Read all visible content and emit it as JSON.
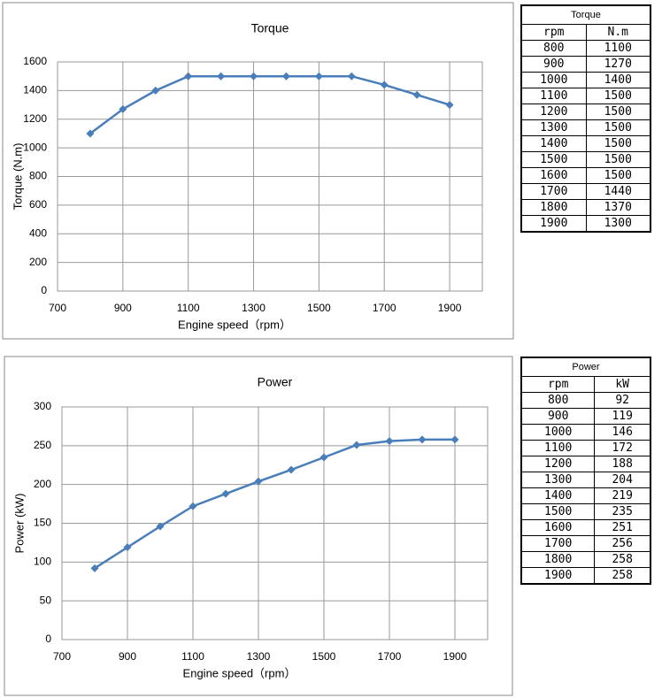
{
  "chart_data": [
    {
      "type": "line",
      "title": "Torque",
      "x_label": "Engine speed（rpm）",
      "y_label": "Torque (N.m)",
      "x": [
        800,
        900,
        1000,
        1100,
        1200,
        1300,
        1400,
        1500,
        1600,
        1700,
        1800,
        1900
      ],
      "series": [
        {
          "name": "Torque",
          "color": "#4a7ebb",
          "values": [
            1100,
            1270,
            1400,
            1500,
            1500,
            1500,
            1500,
            1500,
            1500,
            1440,
            1370,
            1300
          ]
        }
      ],
      "xlim": [
        700,
        2000
      ],
      "xticks": [
        700,
        900,
        1100,
        1300,
        1500,
        1700,
        1900
      ],
      "ylim": [
        0,
        1600
      ],
      "yticks": [
        0,
        200,
        400,
        600,
        800,
        1000,
        1200,
        1400,
        1600
      ],
      "grid": true
    },
    {
      "type": "line",
      "title": "Power",
      "x_label": "Engine speed（rpm）",
      "y_label": "Power (kW)",
      "x": [
        800,
        900,
        1000,
        1100,
        1200,
        1300,
        1400,
        1500,
        1600,
        1700,
        1800,
        1900
      ],
      "series": [
        {
          "name": "Power",
          "color": "#4a7ebb",
          "values": [
            92,
            119,
            146,
            172,
            188,
            204,
            219,
            235,
            251,
            256,
            258,
            258
          ]
        }
      ],
      "xlim": [
        700,
        2000
      ],
      "xticks": [
        700,
        900,
        1100,
        1300,
        1500,
        1700,
        1900
      ],
      "ylim": [
        0,
        300
      ],
      "yticks": [
        0,
        50,
        100,
        150,
        200,
        250,
        300
      ],
      "grid": true
    }
  ],
  "tables": [
    {
      "title": "Torque",
      "header": [
        "rpm",
        "N.m"
      ],
      "rows": [
        [
          "800",
          "1100"
        ],
        [
          "900",
          "1270"
        ],
        [
          "1000",
          "1400"
        ],
        [
          "1100",
          "1500"
        ],
        [
          "1200",
          "1500"
        ],
        [
          "1300",
          "1500"
        ],
        [
          "1400",
          "1500"
        ],
        [
          "1500",
          "1500"
        ],
        [
          "1600",
          "1500"
        ],
        [
          "1700",
          "1440"
        ],
        [
          "1800",
          "1370"
        ],
        [
          "1900",
          "1300"
        ]
      ]
    },
    {
      "title": "Power",
      "header": [
        "rpm",
        "kW"
      ],
      "rows": [
        [
          "800",
          "92"
        ],
        [
          "900",
          "119"
        ],
        [
          "1000",
          "146"
        ],
        [
          "1100",
          "172"
        ],
        [
          "1200",
          "188"
        ],
        [
          "1300",
          "204"
        ],
        [
          "1400",
          "219"
        ],
        [
          "1500",
          "235"
        ],
        [
          "1600",
          "251"
        ],
        [
          "1700",
          "256"
        ],
        [
          "1800",
          "258"
        ],
        [
          "1900",
          "258"
        ]
      ]
    }
  ]
}
